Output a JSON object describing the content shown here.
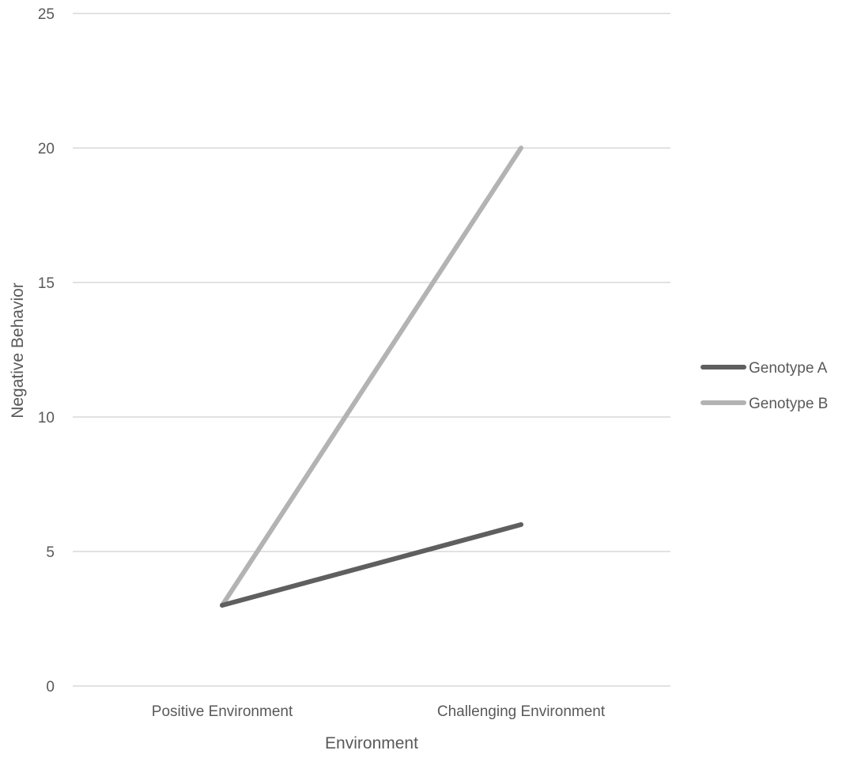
{
  "chart_data": {
    "type": "line",
    "title": "",
    "xlabel": "Environment",
    "ylabel": "Negative Behavior",
    "categories": [
      "Positive Environment",
      "Challenging Environment"
    ],
    "ylim": [
      0,
      25
    ],
    "yticks": [
      0,
      5,
      10,
      15,
      20,
      25
    ],
    "grid": true,
    "legend_position": "right",
    "series": [
      {
        "name": "Genotype A",
        "values": [
          3,
          6
        ],
        "color": "#5f5f5f"
      },
      {
        "name": "Genotype B",
        "values": [
          3,
          20
        ],
        "color": "#b3b3b3"
      }
    ]
  }
}
